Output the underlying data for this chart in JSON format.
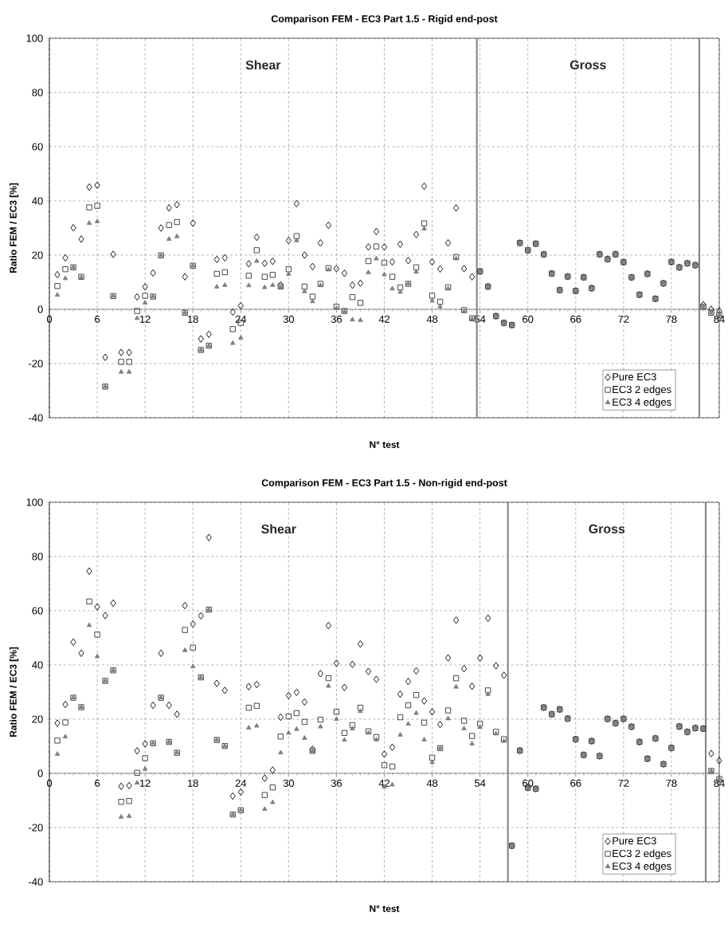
{
  "chart_data": [
    {
      "type": "scatter",
      "title": "Comparison FEM - EC3 Part 1.5 - Rigid end-post",
      "xlabel": "N° test",
      "ylabel": "Ratio FEM / EC3 [%]",
      "x": [
        1,
        2,
        3,
        4,
        5,
        6,
        7,
        8,
        9,
        10,
        11,
        12,
        13,
        14,
        15,
        16,
        17,
        18,
        19,
        20,
        21,
        22,
        23,
        24,
        25,
        26,
        27,
        28,
        29,
        30,
        31,
        32,
        33,
        34,
        35,
        36,
        37,
        38,
        39,
        40,
        41,
        42,
        43,
        44,
        45,
        46,
        47,
        48,
        49,
        50,
        51,
        52,
        53,
        54,
        55,
        56,
        57,
        58,
        59,
        60,
        61,
        62,
        63,
        64,
        65,
        66,
        67,
        68,
        69,
        70,
        71,
        72,
        73,
        74,
        75,
        76,
        77,
        78,
        79,
        80,
        81,
        82,
        83,
        84
      ],
      "series": [
        {
          "name": "Pure EC3",
          "color": "#000000",
          "marker": "diamond",
          "values": [
            12.8,
            19,
            30.1,
            25.9,
            45.1,
            45.8,
            -17.7,
            20.3,
            -15.9,
            -15.9,
            4.6,
            8.3,
            13.4,
            30,
            37.4,
            38.6,
            12,
            31.8,
            -10.9,
            -9.2,
            18.4,
            19,
            -1,
            1.3,
            16.8,
            26.6,
            17,
            17.7,
            9,
            25.4,
            39,
            20,
            15.8,
            24.5,
            31,
            15,
            13.3,
            8.9,
            9.6,
            23,
            28.7,
            23,
            17.5,
            24,
            18,
            27.6,
            45.4,
            17.5,
            14.9,
            24.5,
            37.4,
            15,
            12,
            14,
            8.4,
            -2.5,
            -5,
            -5.8,
            24.5,
            21.8,
            24.2,
            20.3,
            13.2,
            7.1,
            12.1,
            6.8,
            11.8,
            7.8,
            20.3,
            18.5,
            20.3,
            17.4,
            11.8,
            5.4,
            13.1,
            3.9,
            9.6,
            17.5,
            15.5,
            17,
            16.3,
            1.7,
            0,
            -0.6
          ]
        },
        {
          "name": "EC3 2 edges",
          "color": "#333333",
          "marker": "square",
          "values": [
            8.6,
            14.8,
            15.5,
            12,
            37.6,
            38.2,
            -28.5,
            4.9,
            -19.4,
            -19.4,
            -0.6,
            5,
            4.7,
            19.9,
            31.1,
            32.2,
            -1.3,
            16.1,
            -15,
            -13.4,
            13.1,
            13.7,
            -7.3,
            -5,
            12.4,
            21.8,
            12,
            12.7,
            8.4,
            14.8,
            27,
            8.4,
            4.7,
            9.4,
            15.2,
            1,
            -0.6,
            4.5,
            2.4,
            17.8,
            23.2,
            17.2,
            12,
            8.1,
            9.4,
            15.5,
            31.7,
            5,
            2.8,
            8.1,
            19.3,
            -0.3,
            -3.3,
            14,
            8.4,
            -2.5,
            -5,
            -5.8,
            24.5,
            21.8,
            24.2,
            20.3,
            13.2,
            7.1,
            12.1,
            6.8,
            11.8,
            7.8,
            20.3,
            18.5,
            20.3,
            17.4,
            11.8,
            5.4,
            13.1,
            3.9,
            9.6,
            17.5,
            15.5,
            17,
            16.3,
            0.9,
            -1.3,
            -2.1
          ]
        },
        {
          "name": "EC3 4 edges",
          "color": "#808080",
          "marker": "triangle",
          "values": [
            5.3,
            11.4,
            15.5,
            11.8,
            31.8,
            32.4,
            -28.5,
            4.9,
            -23.1,
            -23.1,
            -3.3,
            2.4,
            4.7,
            19.9,
            25.9,
            26.9,
            -1.3,
            16.1,
            -15,
            -13.4,
            8.3,
            8.9,
            -12.5,
            -10.5,
            8.8,
            17.8,
            8.1,
            8.9,
            8.1,
            13,
            25.4,
            6.6,
            2.9,
            8.8,
            14.6,
            0.4,
            -0.8,
            -3.8,
            -4,
            13.6,
            18.7,
            12.8,
            7.6,
            6.4,
            9.4,
            13.8,
            29.7,
            3.2,
            1,
            7.6,
            18.7,
            -0.8,
            -3.5,
            14,
            8.4,
            -2.5,
            -5,
            -5.8,
            24.5,
            21.8,
            24.2,
            20.3,
            13.2,
            7.1,
            12.1,
            6.8,
            11.8,
            7.8,
            20.3,
            18.5,
            20.3,
            17.4,
            11.8,
            5.4,
            13.1,
            3.9,
            9.6,
            17.5,
            15.5,
            17,
            16.3,
            0.9,
            -1.3,
            -2.1
          ]
        }
      ],
      "xlim": [
        0,
        84
      ],
      "ylim": [
        -40,
        100
      ],
      "xticks": [
        0,
        6,
        12,
        18,
        24,
        30,
        36,
        42,
        48,
        54,
        60,
        66,
        72,
        78,
        84
      ],
      "yticks": [
        -40,
        -20,
        0,
        20,
        40,
        60,
        80,
        100
      ],
      "grid": true,
      "legend": "bottom right",
      "ref_lines": [
        {
          "axis": "x",
          "value": 53.6,
          "color": "#808080"
        },
        {
          "axis": "x",
          "value": 81.5,
          "color": "#808080"
        }
      ],
      "annotations": [
        "Shear",
        "Gross"
      ]
    },
    {
      "type": "scatter",
      "title": "Comparison FEM - EC3 Part 1.5 - Non-rigid end-post",
      "xlabel": "N° test",
      "ylabel": "Ratio FEM / EC3 [%]",
      "x": [
        1,
        2,
        3,
        4,
        5,
        6,
        7,
        8,
        9,
        10,
        11,
        12,
        13,
        14,
        15,
        16,
        17,
        18,
        19,
        20,
        21,
        22,
        23,
        24,
        25,
        26,
        27,
        28,
        29,
        30,
        31,
        32,
        33,
        34,
        35,
        36,
        37,
        38,
        39,
        40,
        41,
        42,
        43,
        44,
        45,
        46,
        47,
        48,
        49,
        50,
        51,
        52,
        53,
        54,
        55,
        56,
        57,
        58,
        59,
        60,
        61,
        62,
        63,
        64,
        65,
        66,
        67,
        68,
        69,
        70,
        71,
        72,
        73,
        74,
        75,
        76,
        77,
        78,
        79,
        80,
        81,
        82,
        83,
        84
      ],
      "series": [
        {
          "name": "Pure EC3",
          "color": "#000000",
          "marker": "diamond",
          "values": [
            18.5,
            25.4,
            48.4,
            44.3,
            74.6,
            61.4,
            58.2,
            62.8,
            -4.8,
            -4.5,
            8.3,
            10.9,
            25.1,
            44.3,
            25.1,
            21.8,
            61.9,
            55.1,
            58.1,
            87,
            33.2,
            30.6,
            -8.4,
            -6.9,
            32,
            32.8,
            -1.8,
            1.2,
            20.7,
            28.7,
            29.9,
            26.3,
            8.9,
            36.8,
            54.5,
            40.6,
            31.7,
            40.2,
            47.7,
            37.6,
            34.7,
            7.1,
            9.6,
            29.2,
            33.9,
            37.8,
            26.7,
            22.7,
            18,
            42.6,
            56.5,
            38.6,
            32.1,
            42.6,
            57.2,
            39.7,
            36.2,
            -26.7,
            8.4,
            -5.3,
            -5.7,
            24.3,
            21.8,
            23.6,
            20.2,
            12.6,
            6.8,
            11.9,
            6.4,
            20.1,
            18.5,
            20.1,
            17.2,
            11.6,
            5.4,
            12.9,
            3.4,
            9.4,
            17.3,
            15.3,
            16.7,
            16.5,
            7.3,
            4.7
          ]
        },
        {
          "name": "EC3 2 edges",
          "color": "#333333",
          "marker": "square",
          "values": [
            12.1,
            18.8,
            27.9,
            24.4,
            63.4,
            51.2,
            34.1,
            38,
            -10.5,
            -10.2,
            0.2,
            5.6,
            11.1,
            27.9,
            11.6,
            7.6,
            52.9,
            46.4,
            35.4,
            60.4,
            12.3,
            10.1,
            -15.2,
            -13.6,
            24.2,
            24.9,
            -8,
            -5.2,
            13.6,
            21,
            22.2,
            19,
            8.3,
            19.8,
            35.1,
            22.7,
            14.9,
            17.8,
            24.2,
            15.5,
            13.4,
            3,
            2.5,
            20.7,
            25.1,
            28.9,
            18.7,
            5.8,
            9.3,
            23.2,
            35.1,
            19.4,
            13.8,
            18.3,
            30.6,
            15.3,
            12.6,
            -26.7,
            8.4,
            -5.3,
            -5.7,
            24.3,
            21.8,
            23.6,
            20.2,
            12.6,
            6.8,
            11.9,
            6.4,
            20.1,
            18.5,
            20.1,
            17.2,
            11.6,
            5.4,
            12.9,
            3.4,
            9.4,
            17.3,
            15.3,
            16.7,
            16.5,
            0.9,
            -2.1
          ]
        },
        {
          "name": "EC3 4 edges",
          "color": "#808080",
          "marker": "triangle",
          "values": [
            7.1,
            13.5,
            27.9,
            24.4,
            54.6,
            43.1,
            34.1,
            38,
            -16.1,
            -15.8,
            -3.5,
            1.6,
            11.1,
            27.9,
            11.6,
            7.6,
            45.4,
            39.4,
            35.4,
            60.4,
            12.3,
            10.1,
            -15.2,
            -13.6,
            16.8,
            17.5,
            -13.2,
            -10.7,
            7.6,
            14.9,
            16.3,
            13,
            8.1,
            17.2,
            32.2,
            20,
            12.3,
            16.5,
            22.9,
            14.9,
            12.4,
            -5,
            -4.2,
            14.2,
            18.2,
            22.2,
            12.4,
            4,
            9.3,
            20.2,
            31.9,
            16.5,
            10.9,
            17,
            29.2,
            14.6,
            11.9,
            -26.7,
            8.4,
            -5.3,
            -5.7,
            24.3,
            21.8,
            23.6,
            20.2,
            12.6,
            6.8,
            11.9,
            6.4,
            20.1,
            18.5,
            20.1,
            17.2,
            11.6,
            5.4,
            12.9,
            3.4,
            9.4,
            17.3,
            15.3,
            16.7,
            16.5,
            0.9,
            -2.1
          ]
        }
      ],
      "xlim": [
        0,
        84
      ],
      "ylim": [
        -40,
        100
      ],
      "xticks": [
        0,
        6,
        12,
        18,
        24,
        30,
        36,
        42,
        48,
        54,
        60,
        66,
        72,
        78,
        84
      ],
      "yticks": [
        -40,
        -20,
        0,
        20,
        40,
        60,
        80,
        100
      ],
      "grid": true,
      "legend": "bottom right",
      "ref_lines": [
        {
          "axis": "x",
          "value": 57.5,
          "color": "#808080"
        },
        {
          "axis": "x",
          "value": 82.3,
          "color": "#808080"
        }
      ],
      "annotations": [
        "Shear",
        "Gross"
      ]
    }
  ]
}
